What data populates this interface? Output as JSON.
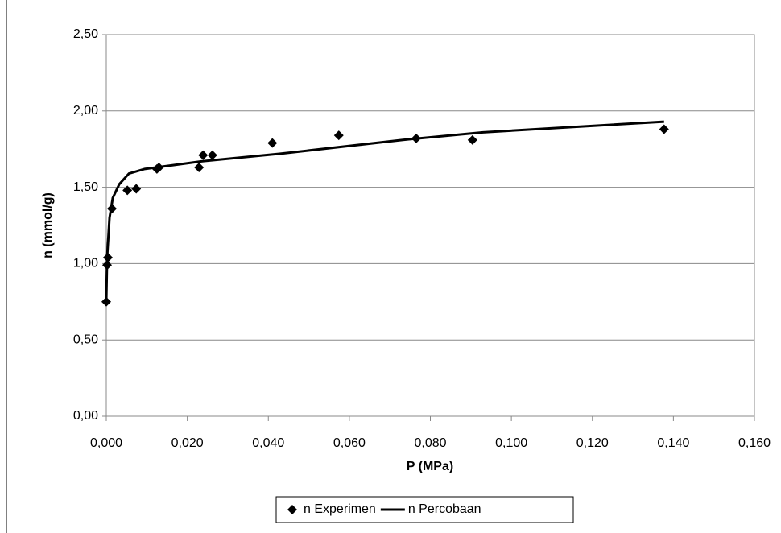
{
  "chart_data": {
    "type": "scatter",
    "xlabel": "P (MPa)",
    "ylabel": "n (mmol/g)",
    "xlim": [
      0,
      0.16
    ],
    "ylim": [
      0,
      2.5
    ],
    "xticks": [
      {
        "value": 0,
        "label": "0,000"
      },
      {
        "value": 0.02,
        "label": "0,020"
      },
      {
        "value": 0.04,
        "label": "0,040"
      },
      {
        "value": 0.06,
        "label": "0,060"
      },
      {
        "value": 0.08,
        "label": "0,080"
      },
      {
        "value": 0.1,
        "label": "0,100"
      },
      {
        "value": 0.12,
        "label": "0,120"
      },
      {
        "value": 0.14,
        "label": "0,140"
      },
      {
        "value": 0.16,
        "label": "0,160"
      }
    ],
    "yticks": [
      {
        "value": 0,
        "label": "0,00"
      },
      {
        "value": 0.5,
        "label": "0,50"
      },
      {
        "value": 1,
        "label": "1,00"
      },
      {
        "value": 1.5,
        "label": "1,50"
      },
      {
        "value": 2,
        "label": "2,00"
      },
      {
        "value": 2.5,
        "label": "2,50"
      }
    ],
    "grid": true,
    "legend": "bottom",
    "series": [
      {
        "name": "n Experimen",
        "type": "scatter",
        "color": "#000000",
        "x": [
          0,
          0.0002,
          0.0004,
          0.0014,
          0.0052,
          0.0074,
          0.0125,
          0.013,
          0.0229,
          0.0239,
          0.0262,
          0.041,
          0.0574,
          0.0765,
          0.0904,
          0.1377
        ],
        "values": [
          0.75,
          0.99,
          1.04,
          1.36,
          1.48,
          1.49,
          1.62,
          1.63,
          1.63,
          1.71,
          1.71,
          1.79,
          1.84,
          1.82,
          1.81,
          1.88
        ]
      },
      {
        "name": "n Percobaan",
        "type": "line",
        "color": "#000000",
        "x": [
          0,
          0.0002,
          0.0008,
          0.0016,
          0.0032,
          0.0056,
          0.0095,
          0.0235,
          0.043,
          0.073,
          0.093,
          0.1377
        ],
        "values": [
          0.75,
          1.04,
          1.3,
          1.43,
          1.52,
          1.59,
          1.62,
          1.67,
          1.72,
          1.81,
          1.86,
          1.93
        ]
      }
    ]
  }
}
